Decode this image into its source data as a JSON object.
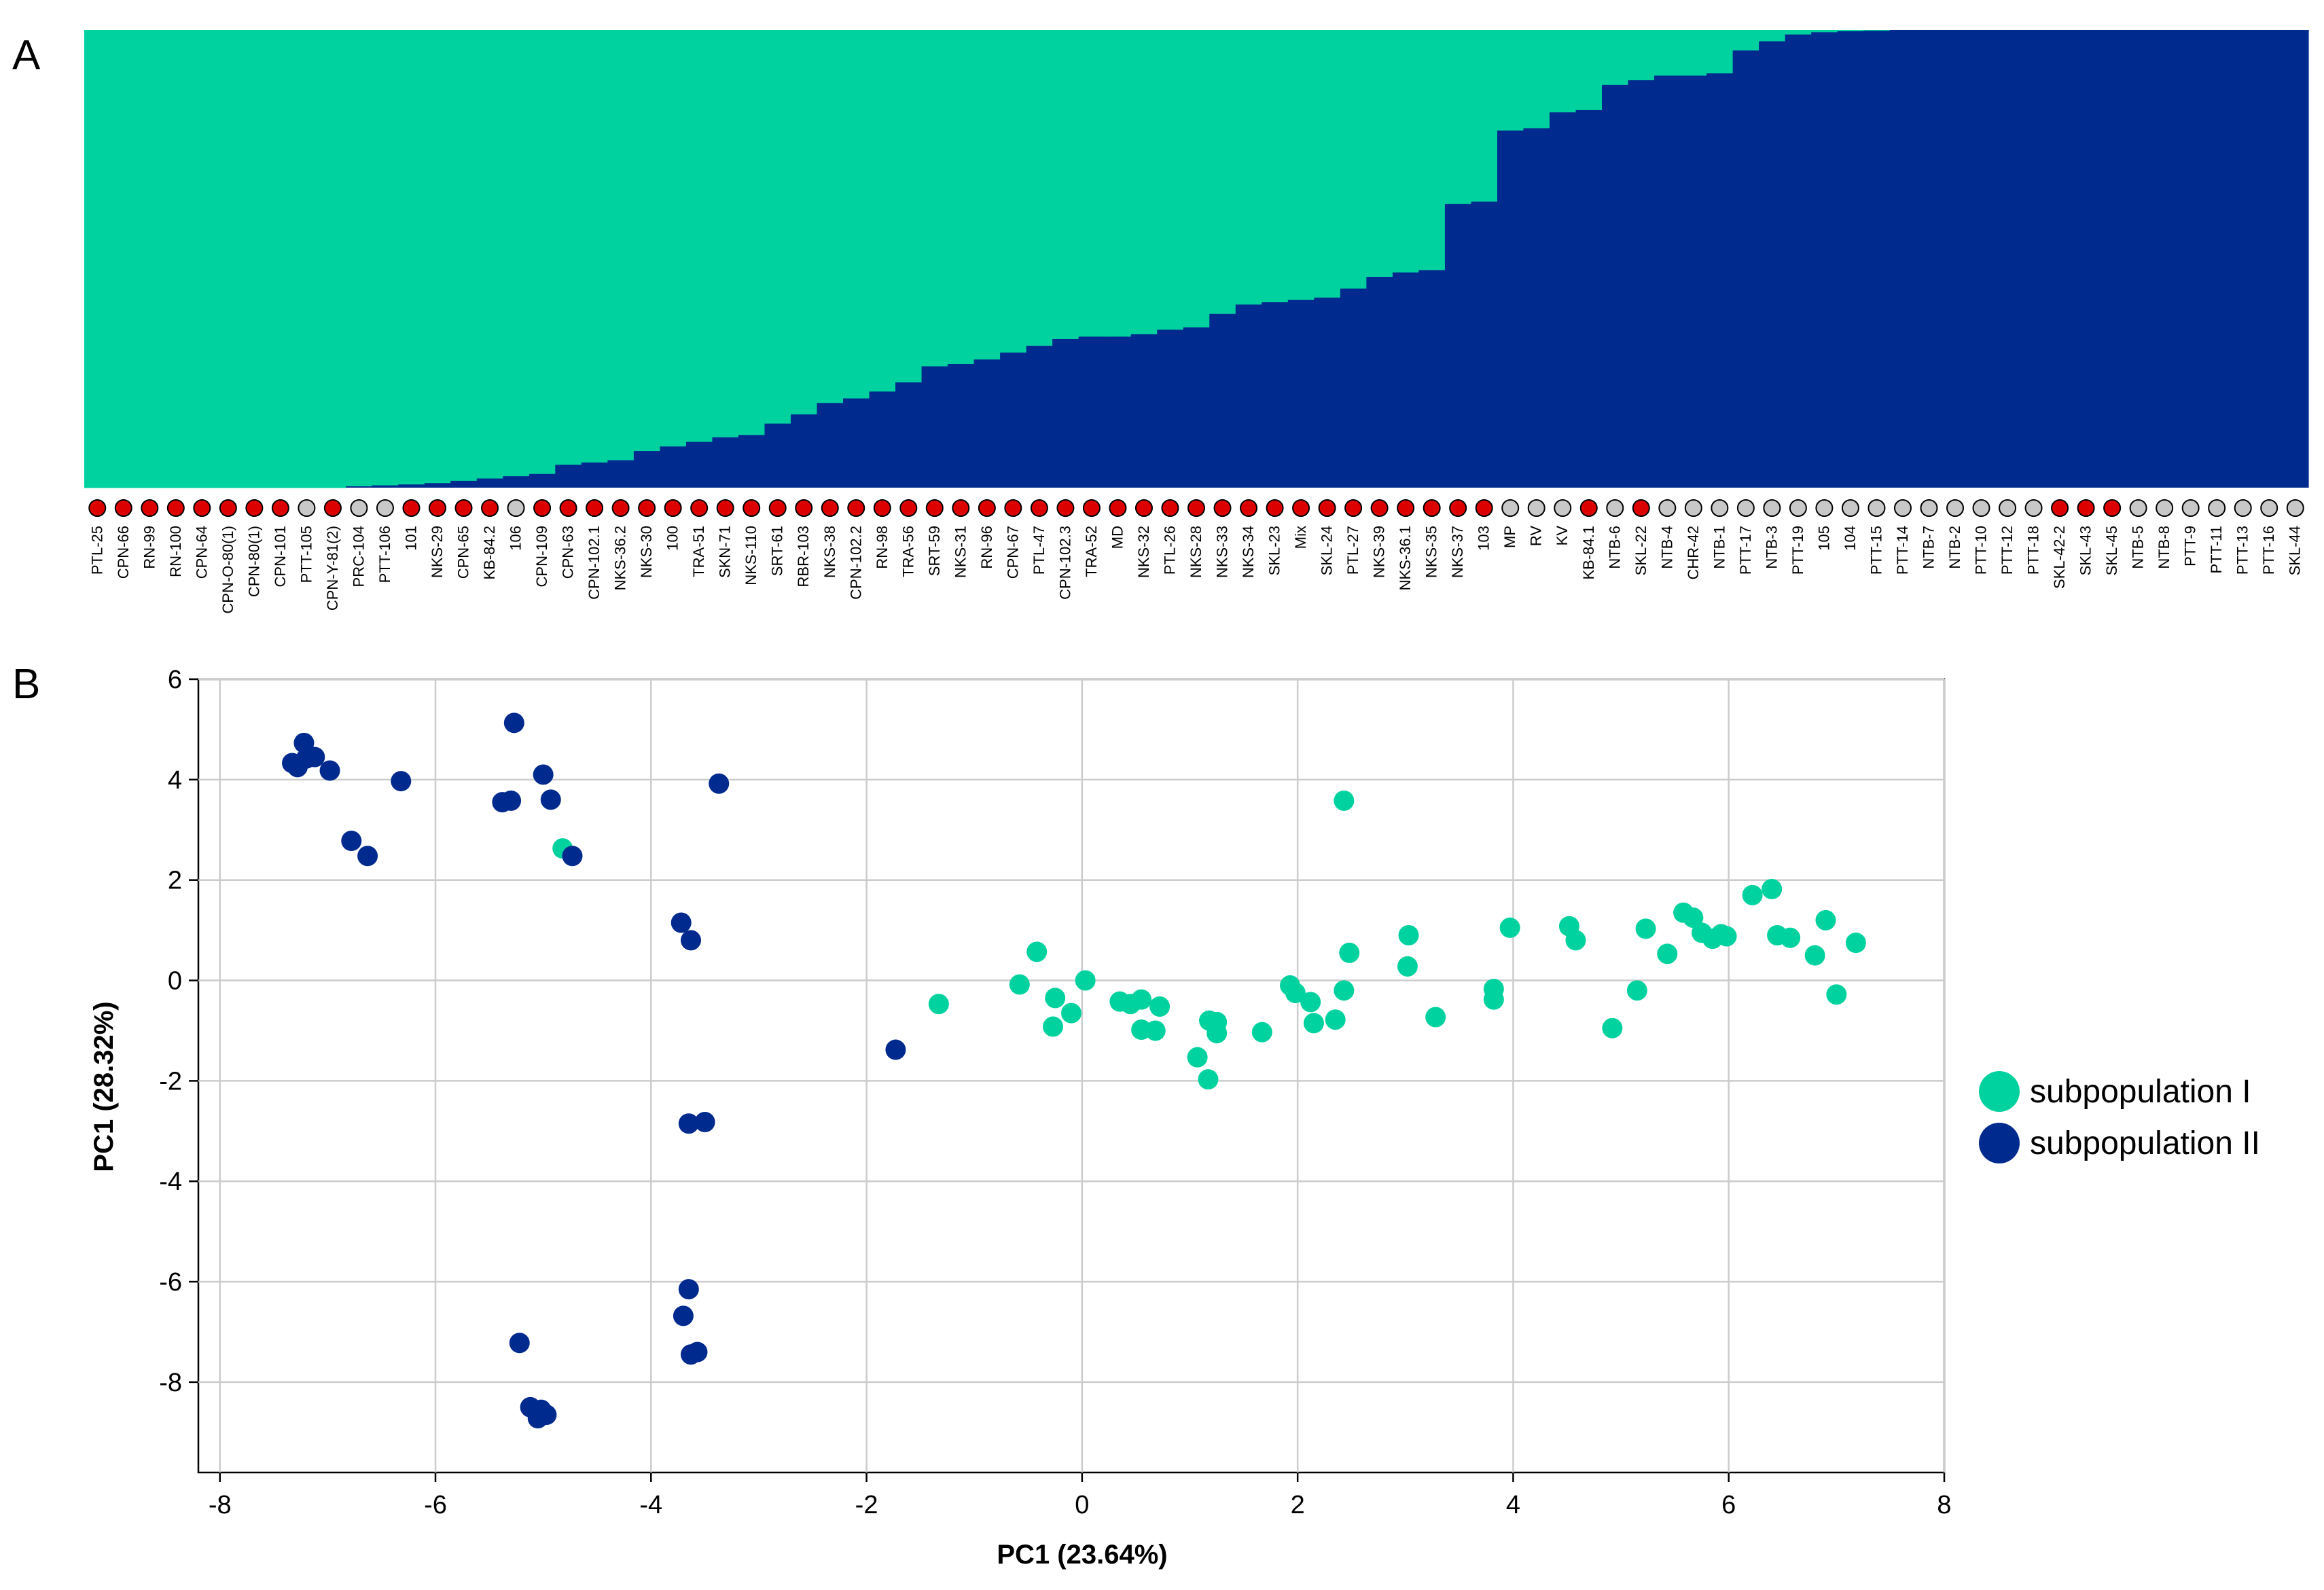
{
  "colors": {
    "subpop1": "#00D29F",
    "subpop2": "#012A8E",
    "marker_red": "#DD0000",
    "marker_grey": "#C8C8C8",
    "grid": "#CCCCCC",
    "axis": "#000000"
  },
  "panel_a": {
    "label": "A"
  },
  "panel_b": {
    "label": "B"
  },
  "chart_data": [
    {
      "type": "bar",
      "stacked": true,
      "title": "",
      "ylim": [
        0,
        1
      ],
      "series": [
        {
          "name": "subpopulation I",
          "color": "#00D29F"
        },
        {
          "name": "subpopulation II",
          "color": "#012A8E"
        }
      ],
      "samples": [
        {
          "label": "PTL-25",
          "q2": 0.0,
          "marker": "red"
        },
        {
          "label": "CPN-66",
          "q2": 0.0,
          "marker": "red"
        },
        {
          "label": "RN-99",
          "q2": 0.0,
          "marker": "red"
        },
        {
          "label": "RN-100",
          "q2": 0.0,
          "marker": "red"
        },
        {
          "label": "CPN-64",
          "q2": 0.0,
          "marker": "red"
        },
        {
          "label": "CPN-O-80(1)",
          "q2": 0.0,
          "marker": "red"
        },
        {
          "label": "CPN-80(1)",
          "q2": 0.0,
          "marker": "red"
        },
        {
          "label": "CPN-101",
          "q2": 0.0,
          "marker": "red"
        },
        {
          "label": "PTT-105",
          "q2": 0.0,
          "marker": "grey"
        },
        {
          "label": "CPN-Y-81(2)",
          "q2": 0.0,
          "marker": "red"
        },
        {
          "label": "PRC-104",
          "q2": 0.003,
          "marker": "grey"
        },
        {
          "label": "PTT-106",
          "q2": 0.005,
          "marker": "grey"
        },
        {
          "label": "101",
          "q2": 0.007,
          "marker": "red"
        },
        {
          "label": "NKS-29",
          "q2": 0.01,
          "marker": "red"
        },
        {
          "label": "CPN-65",
          "q2": 0.015,
          "marker": "red"
        },
        {
          "label": "KB-84.2",
          "q2": 0.02,
          "marker": "red"
        },
        {
          "label": "106",
          "q2": 0.025,
          "marker": "grey"
        },
        {
          "label": "CPN-109",
          "q2": 0.03,
          "marker": "red"
        },
        {
          "label": "CPN-63",
          "q2": 0.05,
          "marker": "red"
        },
        {
          "label": "CPN-102.1",
          "q2": 0.055,
          "marker": "red"
        },
        {
          "label": "NKS-36.2",
          "q2": 0.06,
          "marker": "red"
        },
        {
          "label": "NKS-30",
          "q2": 0.08,
          "marker": "red"
        },
        {
          "label": "100",
          "q2": 0.09,
          "marker": "red"
        },
        {
          "label": "TRA-51",
          "q2": 0.1,
          "marker": "red"
        },
        {
          "label": "SKN-71",
          "q2": 0.11,
          "marker": "red"
        },
        {
          "label": "NKS-110",
          "q2": 0.115,
          "marker": "red"
        },
        {
          "label": "SRT-61",
          "q2": 0.14,
          "marker": "red"
        },
        {
          "label": "RBR-103",
          "q2": 0.16,
          "marker": "red"
        },
        {
          "label": "NKS-38",
          "q2": 0.185,
          "marker": "red"
        },
        {
          "label": "CPN-102.2",
          "q2": 0.195,
          "marker": "red"
        },
        {
          "label": "RN-98",
          "q2": 0.21,
          "marker": "red"
        },
        {
          "label": "TRA-56",
          "q2": 0.23,
          "marker": "red"
        },
        {
          "label": "SRT-59",
          "q2": 0.265,
          "marker": "red"
        },
        {
          "label": "NKS-31",
          "q2": 0.27,
          "marker": "red"
        },
        {
          "label": "RN-96",
          "q2": 0.28,
          "marker": "red"
        },
        {
          "label": "CPN-67",
          "q2": 0.295,
          "marker": "red"
        },
        {
          "label": "PTL-47",
          "q2": 0.31,
          "marker": "red"
        },
        {
          "label": "CPN-102.3",
          "q2": 0.325,
          "marker": "red"
        },
        {
          "label": "TRA-52",
          "q2": 0.33,
          "marker": "red"
        },
        {
          "label": "MD",
          "q2": 0.33,
          "marker": "red"
        },
        {
          "label": "NKS-32",
          "q2": 0.335,
          "marker": "red"
        },
        {
          "label": "PTL-26",
          "q2": 0.345,
          "marker": "red"
        },
        {
          "label": "NKS-28",
          "q2": 0.35,
          "marker": "red"
        },
        {
          "label": "NKS-33",
          "q2": 0.38,
          "marker": "red"
        },
        {
          "label": "NKS-34",
          "q2": 0.4,
          "marker": "red"
        },
        {
          "label": "SKL-23",
          "q2": 0.405,
          "marker": "red"
        },
        {
          "label": "Mix",
          "q2": 0.41,
          "marker": "red"
        },
        {
          "label": "SKL-24",
          "q2": 0.415,
          "marker": "red"
        },
        {
          "label": "PTL-27",
          "q2": 0.435,
          "marker": "red"
        },
        {
          "label": "NKS-39",
          "q2": 0.46,
          "marker": "red"
        },
        {
          "label": "NKS-36.1",
          "q2": 0.47,
          "marker": "red"
        },
        {
          "label": "NKS-35",
          "q2": 0.475,
          "marker": "red"
        },
        {
          "label": "NKS-37",
          "q2": 0.62,
          "marker": "red"
        },
        {
          "label": "103",
          "q2": 0.625,
          "marker": "red"
        },
        {
          "label": "MP",
          "q2": 0.78,
          "marker": "grey"
        },
        {
          "label": "RV",
          "q2": 0.785,
          "marker": "grey"
        },
        {
          "label": "KV",
          "q2": 0.82,
          "marker": "grey"
        },
        {
          "label": "KB-84.1",
          "q2": 0.825,
          "marker": "red"
        },
        {
          "label": "NTB-6",
          "q2": 0.88,
          "marker": "grey"
        },
        {
          "label": "SKL-22",
          "q2": 0.89,
          "marker": "red"
        },
        {
          "label": "NTB-4",
          "q2": 0.9,
          "marker": "grey"
        },
        {
          "label": "CHR-42",
          "q2": 0.9,
          "marker": "grey"
        },
        {
          "label": "NTB-1",
          "q2": 0.905,
          "marker": "grey"
        },
        {
          "label": "PTT-17",
          "q2": 0.955,
          "marker": "grey"
        },
        {
          "label": "NTB-3",
          "q2": 0.975,
          "marker": "grey"
        },
        {
          "label": "PTT-19",
          "q2": 0.99,
          "marker": "grey"
        },
        {
          "label": "105",
          "q2": 0.995,
          "marker": "grey"
        },
        {
          "label": "104",
          "q2": 0.997,
          "marker": "grey"
        },
        {
          "label": "PTT-15",
          "q2": 0.998,
          "marker": "grey"
        },
        {
          "label": "PTT-14",
          "q2": 1.0,
          "marker": "grey"
        },
        {
          "label": "NTB-7",
          "q2": 1.0,
          "marker": "grey"
        },
        {
          "label": "NTB-2",
          "q2": 1.0,
          "marker": "grey"
        },
        {
          "label": "PTT-10",
          "q2": 1.0,
          "marker": "grey"
        },
        {
          "label": "PTT-12",
          "q2": 1.0,
          "marker": "grey"
        },
        {
          "label": "PTT-18",
          "q2": 1.0,
          "marker": "grey"
        },
        {
          "label": "SKL-42-2",
          "q2": 1.0,
          "marker": "red"
        },
        {
          "label": "SKL-43",
          "q2": 1.0,
          "marker": "red"
        },
        {
          "label": "SKL-45",
          "q2": 1.0,
          "marker": "red"
        },
        {
          "label": "NTB-5",
          "q2": 1.0,
          "marker": "grey"
        },
        {
          "label": "NTB-8",
          "q2": 1.0,
          "marker": "grey"
        },
        {
          "label": "PTT-9",
          "q2": 1.0,
          "marker": "grey"
        },
        {
          "label": "PTT-11",
          "q2": 1.0,
          "marker": "grey"
        },
        {
          "label": "PTT-13",
          "q2": 1.0,
          "marker": "grey"
        },
        {
          "label": "PTT-16",
          "q2": 1.0,
          "marker": "grey"
        },
        {
          "label": "SKL-44",
          "q2": 1.0,
          "marker": "grey"
        }
      ]
    },
    {
      "type": "scatter",
      "title": "",
      "xlabel": "PC1 (23.64%)",
      "ylabel": "PC1 (28.32%)",
      "xlim": [
        -8.2,
        8
      ],
      "ylim": [
        -9.8,
        6
      ],
      "xticks": [
        -8,
        -6,
        -4,
        -2,
        0,
        2,
        4,
        6,
        8
      ],
      "yticks": [
        -8,
        -6,
        -4,
        -2,
        0,
        2,
        4,
        6
      ],
      "grid": true,
      "legend_position": "right",
      "series": [
        {
          "name": "subpopulation I",
          "color": "#00D29F",
          "points": [
            [
              -4.82,
              2.63
            ],
            [
              2.43,
              3.58
            ],
            [
              -1.33,
              -0.47
            ],
            [
              -0.58,
              -0.08
            ],
            [
              -0.42,
              0.57
            ],
            [
              -0.25,
              -0.35
            ],
            [
              -0.27,
              -0.92
            ],
            [
              -0.1,
              -0.65
            ],
            [
              0.03,
              0.0
            ],
            [
              0.35,
              -0.42
            ],
            [
              0.45,
              -0.47
            ],
            [
              0.55,
              -0.38
            ],
            [
              0.55,
              -0.98
            ],
            [
              0.68,
              -1.0
            ],
            [
              0.72,
              -0.52
            ],
            [
              1.07,
              -1.53
            ],
            [
              1.17,
              -1.97
            ],
            [
              1.18,
              -0.8
            ],
            [
              1.25,
              -0.83
            ],
            [
              1.25,
              -1.05
            ],
            [
              1.67,
              -1.03
            ],
            [
              1.93,
              -0.1
            ],
            [
              1.98,
              -0.25
            ],
            [
              2.12,
              -0.43
            ],
            [
              2.15,
              -0.85
            ],
            [
              2.35,
              -0.78
            ],
            [
              2.43,
              -0.2
            ],
            [
              2.48,
              0.55
            ],
            [
              3.02,
              0.28
            ],
            [
              3.03,
              0.9
            ],
            [
              3.28,
              -0.73
            ],
            [
              3.82,
              -0.17
            ],
            [
              3.82,
              -0.38
            ],
            [
              3.97,
              1.05
            ],
            [
              4.52,
              1.08
            ],
            [
              4.58,
              0.8
            ],
            [
              4.92,
              -0.95
            ],
            [
              5.15,
              -0.2
            ],
            [
              5.23,
              1.03
            ],
            [
              5.43,
              0.53
            ],
            [
              5.58,
              1.35
            ],
            [
              5.67,
              1.25
            ],
            [
              5.75,
              0.95
            ],
            [
              5.85,
              0.83
            ],
            [
              5.93,
              0.92
            ],
            [
              5.98,
              0.88
            ],
            [
              6.22,
              1.7
            ],
            [
              6.4,
              1.82
            ],
            [
              6.45,
              0.9
            ],
            [
              6.57,
              0.85
            ],
            [
              6.8,
              0.5
            ],
            [
              6.9,
              1.2
            ],
            [
              7.0,
              -0.28
            ],
            [
              7.18,
              0.75
            ]
          ]
        },
        {
          "name": "subpopulation II",
          "color": "#012A8E",
          "points": [
            [
              -7.33,
              4.33
            ],
            [
              -7.28,
              4.25
            ],
            [
              -7.22,
              4.73
            ],
            [
              -7.2,
              4.42
            ],
            [
              -7.12,
              4.45
            ],
            [
              -6.98,
              4.18
            ],
            [
              -6.78,
              2.78
            ],
            [
              -6.63,
              2.48
            ],
            [
              -6.32,
              3.97
            ],
            [
              -5.38,
              3.55
            ],
            [
              -5.3,
              3.58
            ],
            [
              -5.27,
              5.13
            ],
            [
              -5.0,
              4.1
            ],
            [
              -4.93,
              3.6
            ],
            [
              -4.73,
              2.48
            ],
            [
              -3.37,
              3.92
            ],
            [
              -3.72,
              1.15
            ],
            [
              -3.63,
              0.8
            ],
            [
              -3.65,
              -2.85
            ],
            [
              -3.5,
              -2.82
            ],
            [
              -1.73,
              -1.38
            ],
            [
              -3.65,
              -6.15
            ],
            [
              -3.7,
              -6.68
            ],
            [
              -3.63,
              -7.45
            ],
            [
              -3.57,
              -7.4
            ],
            [
              -5.22,
              -7.22
            ],
            [
              -5.12,
              -8.5
            ],
            [
              -5.02,
              -8.55
            ],
            [
              -4.97,
              -8.65
            ],
            [
              -5.05,
              -8.72
            ]
          ]
        }
      ]
    }
  ]
}
